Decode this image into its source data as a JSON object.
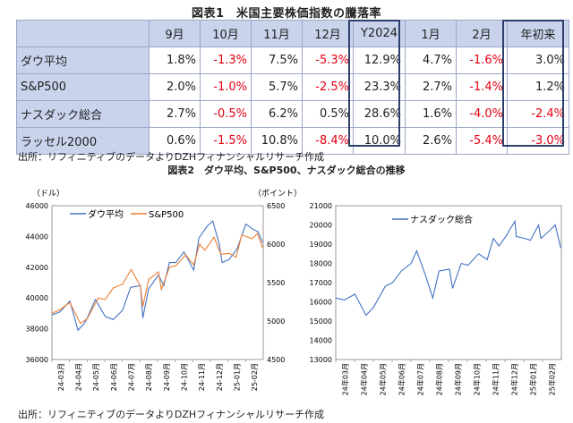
{
  "figure1": {
    "title": "図表1　米国主要株価指数の騰落率",
    "columns": [
      "9月",
      "10月",
      "11月",
      "12月",
      "Y2024",
      "1月",
      "2月",
      "年初来"
    ],
    "rows": [
      {
        "label": "ダウ平均",
        "values": [
          "1.8%",
          "-1.3%",
          "7.5%",
          "-5.3%",
          "12.9%",
          "4.7%",
          "-1.6%",
          "3.0%"
        ]
      },
      {
        "label": "S&P500",
        "values": [
          "2.0%",
          "-1.0%",
          "5.7%",
          "-2.5%",
          "23.3%",
          "2.7%",
          "-1.4%",
          "1.2%"
        ]
      },
      {
        "label": "ナスダック総合",
        "values": [
          "2.7%",
          "-0.5%",
          "6.2%",
          "0.5%",
          "28.6%",
          "1.6%",
          "-4.0%",
          "-2.4%"
        ]
      },
      {
        "label": "ラッセル2000",
        "values": [
          "0.6%",
          "-1.5%",
          "10.8%",
          "-8.4%",
          "10.0%",
          "2.6%",
          "-5.4%",
          "-3.0%"
        ]
      }
    ],
    "source": "出所：リフィニティブのデータよりDZHフィナンシャルリサーチ作成"
  },
  "figure2": {
    "title": "図表2　ダウ平均、S&P500、ナスダック総合の推移",
    "source": "出所：リフィニティブのデータよりDZHフィナンシャルリサーチ作成"
  },
  "colors": {
    "dow": "#4472c4",
    "sp500": "#ed7d31",
    "nasdaq": "#4472c4",
    "negative": "#e60012",
    "header": "#c9d3ec"
  },
  "chart_data": [
    {
      "type": "line",
      "x_tick_labels": [
        "24-03月",
        "24-04月",
        "24-05月",
        "24-06月",
        "24-07月",
        "24-08月",
        "24-09月",
        "24-10月",
        "24-11月",
        "24-12月",
        "25-01月",
        "25-02月"
      ],
      "left_axis": {
        "unit_label": "（ドル）",
        "ylim": [
          36000,
          46000
        ],
        "ticks": [
          "46000",
          "44000",
          "42000",
          "40000",
          "38000",
          "36000"
        ]
      },
      "right_axis": {
        "unit_label": "（ポイント）",
        "ylim": [
          4500,
          6500
        ],
        "ticks": [
          "6500",
          "6000",
          "5500",
          "5000",
          "4500"
        ]
      },
      "legend": "top-left",
      "series": [
        {
          "name": "ダウ平均",
          "axis": "left",
          "x": [
            "2024-03-01",
            "2024-03-15",
            "2024-04-01",
            "2024-04-15",
            "2024-04-25",
            "2024-05-01",
            "2024-05-15",
            "2024-06-01",
            "2024-06-15",
            "2024-07-01",
            "2024-07-15",
            "2024-08-01",
            "2024-08-05",
            "2024-08-15",
            "2024-09-01",
            "2024-09-10",
            "2024-09-20",
            "2024-10-01",
            "2024-10-15",
            "2024-11-01",
            "2024-11-10",
            "2024-11-25",
            "2024-12-04",
            "2024-12-15",
            "2024-12-20",
            "2025-01-01",
            "2025-01-15",
            "2025-01-30",
            "2025-02-10",
            "2025-02-20",
            "2025-02-28"
          ],
          "values": [
            38900,
            39100,
            39800,
            37900,
            38300,
            38700,
            39900,
            38800,
            38600,
            39200,
            40700,
            40800,
            38700,
            40600,
            41500,
            40800,
            42300,
            42300,
            43000,
            41800,
            43900,
            44700,
            45000,
            43500,
            42300,
            42500,
            43200,
            44800,
            44500,
            44300,
            43600
          ]
        },
        {
          "name": "S&P500",
          "axis": "right",
          "x": [
            "2024-03-01",
            "2024-03-15",
            "2024-04-01",
            "2024-04-19",
            "2024-05-01",
            "2024-05-20",
            "2024-06-01",
            "2024-06-15",
            "2024-07-01",
            "2024-07-16",
            "2024-08-01",
            "2024-08-05",
            "2024-08-15",
            "2024-09-01",
            "2024-09-06",
            "2024-09-20",
            "2024-10-01",
            "2024-10-18",
            "2024-11-01",
            "2024-11-11",
            "2024-11-20",
            "2024-12-06",
            "2024-12-18",
            "2025-01-01",
            "2025-01-13",
            "2025-01-23",
            "2025-02-10",
            "2025-02-19",
            "2025-02-28"
          ],
          "values": [
            5100,
            5150,
            5240,
            4970,
            5030,
            5300,
            5280,
            5430,
            5480,
            5670,
            5450,
            5190,
            5540,
            5640,
            5410,
            5700,
            5720,
            5860,
            5730,
            6000,
            5920,
            6090,
            5870,
            5880,
            5830,
            6120,
            6070,
            6140,
            5950
          ]
        }
      ]
    },
    {
      "type": "line",
      "x_tick_labels": [
        "24年03月",
        "24年04月",
        "24年05月",
        "24年06月",
        "24年07月",
        "24年08月",
        "24年09月",
        "24年10月",
        "24年11月",
        "24年12月",
        "25年01月",
        "25年02月"
      ],
      "ylim": [
        13000,
        21000
      ],
      "y_ticks": [
        "21000",
        "20000",
        "19000",
        "18000",
        "17000",
        "16000",
        "15000",
        "14000",
        "13000"
      ],
      "legend": "top-center",
      "series": [
        {
          "name": "ナスダック総合",
          "x": [
            "2024-03-01",
            "2024-03-15",
            "2024-04-01",
            "2024-04-19",
            "2024-05-01",
            "2024-05-20",
            "2024-06-01",
            "2024-06-15",
            "2024-07-01",
            "2024-07-10",
            "2024-07-25",
            "2024-08-05",
            "2024-08-15",
            "2024-09-01",
            "2024-09-06",
            "2024-09-20",
            "2024-10-01",
            "2024-10-18",
            "2024-11-01",
            "2024-11-11",
            "2024-11-20",
            "2024-12-01",
            "2024-12-16",
            "2024-12-18",
            "2025-01-01",
            "2025-01-10",
            "2025-01-23",
            "2025-01-27",
            "2025-02-10",
            "2025-02-19",
            "2025-02-28"
          ],
          "values": [
            16200,
            16100,
            16400,
            15300,
            15700,
            16800,
            17000,
            17600,
            18000,
            18650,
            17300,
            16200,
            17600,
            17700,
            16700,
            18000,
            17900,
            18500,
            18200,
            19300,
            18900,
            19400,
            20200,
            19400,
            19300,
            19200,
            20000,
            19300,
            19700,
            20000,
            18800
          ]
        }
      ]
    }
  ]
}
